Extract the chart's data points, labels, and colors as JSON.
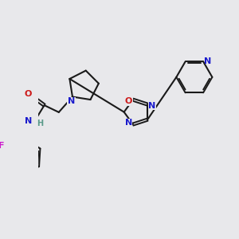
{
  "bg_color": "#e8e8eb",
  "bond_color": "#1a1a1a",
  "atom_colors": {
    "N": "#1a1acc",
    "O": "#cc1a1a",
    "F": "#cc1acc",
    "H": "#5a9a8a",
    "C": "#1a1a1a"
  }
}
